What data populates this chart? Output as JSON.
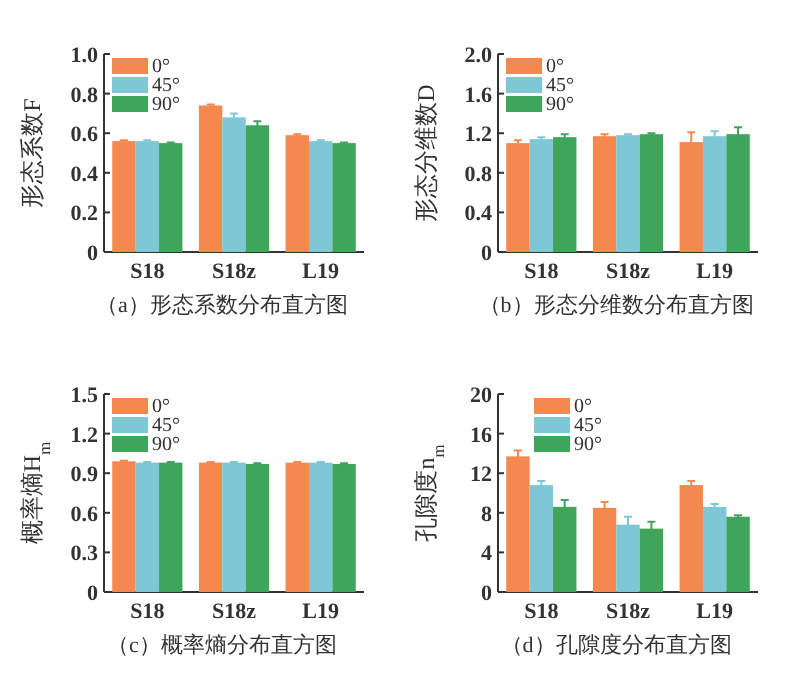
{
  "chart_data": [
    {
      "type": "bar",
      "title": "（a）形态系数分布直方图",
      "ylabel": "形态系数F",
      "categories": [
        "S18",
        "S18z",
        "L19"
      ],
      "ylim": [
        0,
        1.0
      ],
      "yticks": [
        0,
        0.2,
        0.4,
        0.6,
        0.8,
        {
          "value": 1.0,
          "label": "1.0"
        }
      ],
      "legend": "top left",
      "series": [
        {
          "name": "0°",
          "color": "#f4894f",
          "values": [
            0.56,
            0.74,
            0.59
          ],
          "errors": [
            0.005,
            0.005,
            0.005
          ]
        },
        {
          "name": "45°",
          "color": "#7ec8d6",
          "values": [
            0.56,
            0.68,
            0.56
          ],
          "errors": [
            0.005,
            0.02,
            0.005
          ]
        },
        {
          "name": "90°",
          "color": "#3fa55a",
          "values": [
            0.55,
            0.64,
            0.55
          ],
          "errors": [
            0.003,
            0.02,
            0.003
          ]
        }
      ]
    },
    {
      "type": "bar",
      "title": "（b）形态分维数分布直方图",
      "ylabel": "形态分维数D",
      "categories": [
        "S18",
        "S18z",
        "L19"
      ],
      "ylim": [
        0,
        2.0
      ],
      "yticks": [
        0,
        0.4,
        0.8,
        1.2,
        1.6,
        {
          "value": 2.0,
          "label": "2.0"
        }
      ],
      "legend": "top left",
      "series": [
        {
          "name": "0°",
          "color": "#f4894f",
          "values": [
            1.1,
            1.17,
            1.11
          ],
          "errors": [
            0.03,
            0.02,
            0.1
          ]
        },
        {
          "name": "45°",
          "color": "#7ec8d6",
          "values": [
            1.14,
            1.18,
            1.17
          ],
          "errors": [
            0.02,
            0.01,
            0.05
          ]
        },
        {
          "name": "90°",
          "color": "#3fa55a",
          "values": [
            1.16,
            1.19,
            1.19
          ],
          "errors": [
            0.03,
            0.01,
            0.07
          ]
        }
      ]
    },
    {
      "type": "bar",
      "title": "（c）概率熵分布直方图",
      "ylabel": "概率熵H$_{m}$",
      "categories": [
        "S18",
        "S18z",
        "L19"
      ],
      "ylim": [
        0,
        1.5
      ],
      "yticks": [
        0,
        0.3,
        0.6,
        0.9,
        1.2,
        1.5
      ],
      "legend": "top left",
      "series": [
        {
          "name": "0°",
          "color": "#f4894f",
          "values": [
            0.99,
            0.98,
            0.98
          ],
          "errors": [
            0.005,
            0.005,
            0.005
          ]
        },
        {
          "name": "45°",
          "color": "#7ec8d6",
          "values": [
            0.98,
            0.98,
            0.98
          ],
          "errors": [
            0.005,
            0.005,
            0.005
          ]
        },
        {
          "name": "90°",
          "color": "#3fa55a",
          "values": [
            0.98,
            0.97,
            0.97
          ],
          "errors": [
            0.005,
            0.005,
            0.005
          ]
        }
      ]
    },
    {
      "type": "bar",
      "title": "（d）孔隙度分布直方图",
      "ylabel": "孔隙度n$_{m}$",
      "categories": [
        "S18",
        "S18z",
        "L19"
      ],
      "ylim": [
        0,
        20
      ],
      "yticks": [
        0,
        4,
        8,
        12,
        16,
        20
      ],
      "legend": "top left",
      "series": [
        {
          "name": "0°",
          "color": "#f4894f",
          "values": [
            13.7,
            8.5,
            10.8
          ],
          "errors": [
            0.6,
            0.6,
            0.4
          ]
        },
        {
          "name": "45°",
          "color": "#7ec8d6",
          "values": [
            10.8,
            6.8,
            8.6
          ],
          "errors": [
            0.4,
            0.8,
            0.3
          ]
        },
        {
          "name": "90°",
          "color": "#3fa55a",
          "values": [
            8.6,
            6.4,
            7.6
          ],
          "errors": [
            0.7,
            0.7,
            0.15
          ]
        }
      ]
    }
  ]
}
